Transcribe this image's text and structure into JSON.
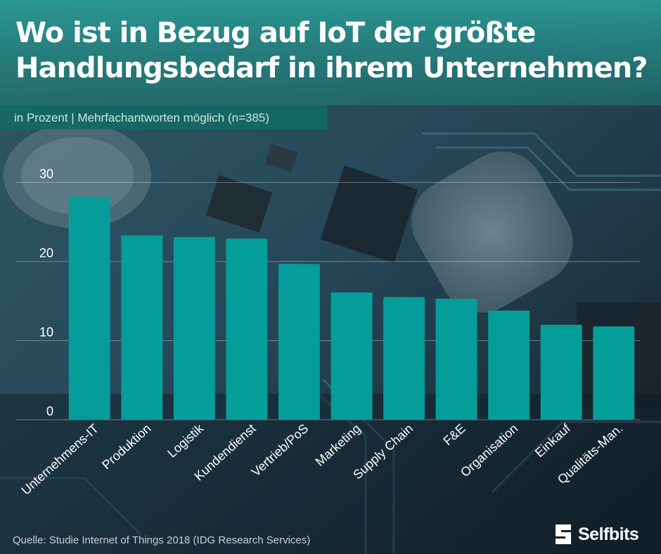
{
  "header": {
    "title_line1": "Wo ist in Bezug auf IoT der größte",
    "title_line2": "Handlungsbedarf in ihrem Unternehmen?",
    "subtitle": "in Prozent | Mehrfachantworten möglich (n=385)"
  },
  "footer": {
    "source": "Quelle: Studie Internet of Things 2018 (IDG Research Services)",
    "brand": "Selfbits"
  },
  "colors": {
    "bar": "#059d99",
    "accent": "#0e7a74",
    "text": "#ffffff"
  },
  "chart_data": {
    "type": "bar",
    "title": "Wo ist in Bezug auf IoT der größte Handlungsbedarf in ihrem Unternehmen?",
    "subtitle": "in Prozent | Mehrfachantworten möglich (n=385)",
    "categories": [
      "Unternehmens-IT",
      "Produktion",
      "Logistik",
      "Kundendienst",
      "Vertrieb/PoS",
      "Marketing",
      "Supply Chain",
      "F&E",
      "Organisation",
      "Einkauf",
      "Qualitäts-Man."
    ],
    "values": [
      28.2,
      23.3,
      23.1,
      22.9,
      19.7,
      16.1,
      15.5,
      15.3,
      13.8,
      12.0,
      11.8
    ],
    "yticks": [
      0,
      10,
      20,
      30
    ],
    "ylim": [
      0,
      32
    ],
    "grid": true,
    "legend": "none"
  }
}
